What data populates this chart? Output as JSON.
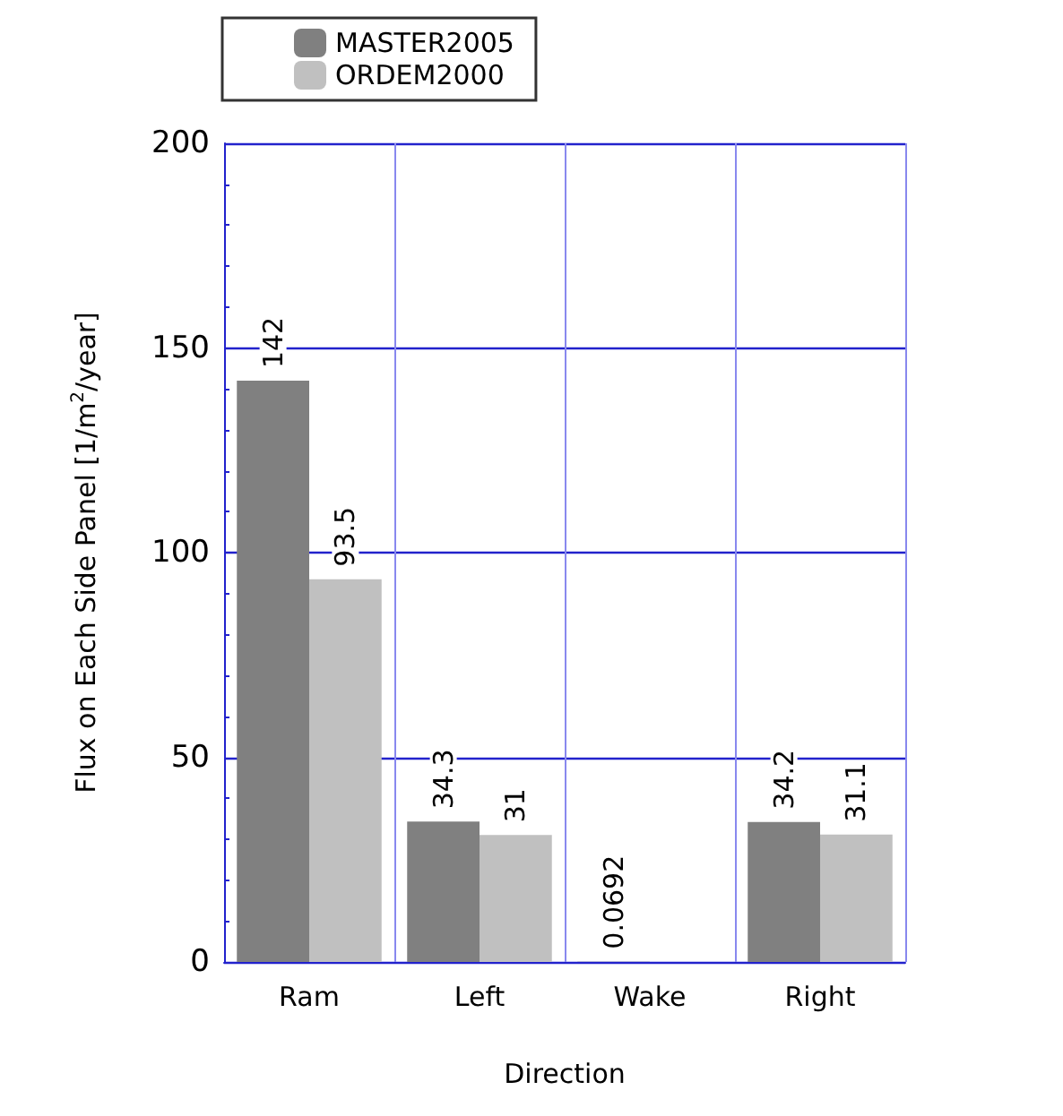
{
  "chart_data": {
    "type": "bar",
    "xlabel": "Direction",
    "ylabel": "Flux on Each Side Panel [1/m$^{2}$/year]",
    "categories": [
      "Ram",
      "Left",
      "Wake",
      "Right"
    ],
    "series": [
      {
        "name": "MASTER2005",
        "color": "#808080",
        "values": [
          142,
          34.3,
          0.0692,
          34.2
        ]
      },
      {
        "name": "ORDEM2000",
        "color": "#c0c0c0",
        "values": [
          93.5,
          31,
          null,
          31.1
        ]
      }
    ],
    "ylim": [
      0,
      200
    ],
    "yticks": [
      0,
      50,
      100,
      150,
      200
    ],
    "grid": true,
    "legend": "top left",
    "data_labels": true
  }
}
